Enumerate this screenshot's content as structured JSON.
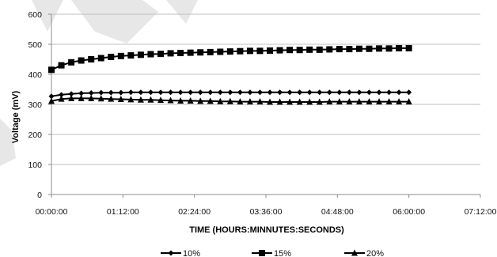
{
  "chart_data": {
    "type": "line",
    "xlabel": "TIME (HOURS:MINNUTES:SECONDS)",
    "ylabel": "Voltage (mV)",
    "x_ticks": [
      "00:00:00",
      "01:12:00",
      "02:24:00",
      "03:36:00",
      "04:48:00",
      "06:00:00",
      "07:12:00"
    ],
    "xlim_minutes": [
      0,
      432
    ],
    "ylim": [
      0,
      600
    ],
    "y_ticks": [
      0,
      100,
      200,
      300,
      400,
      500,
      600
    ],
    "grid": "horizontal",
    "legend_position": "bottom",
    "series": [
      {
        "name": "10%",
        "marker": "diamond",
        "color": "#000000",
        "x_minutes": [
          0,
          10,
          20,
          30,
          40,
          50,
          60,
          70,
          80,
          90,
          100,
          110,
          120,
          130,
          140,
          150,
          160,
          170,
          180,
          190,
          200,
          210,
          220,
          230,
          240,
          250,
          260,
          270,
          280,
          290,
          300,
          310,
          320,
          330,
          340,
          350,
          360
        ],
        "values": [
          327,
          332,
          335,
          337,
          338,
          339,
          339,
          339,
          340,
          340,
          340,
          340,
          340,
          340,
          340,
          340,
          340,
          340,
          340,
          340,
          340,
          340,
          340,
          340,
          340,
          340,
          340,
          340,
          340,
          340,
          340,
          340,
          340,
          340,
          340,
          340,
          340
        ]
      },
      {
        "name": "15%",
        "marker": "square",
        "color": "#000000",
        "x_minutes": [
          0,
          10,
          20,
          30,
          40,
          50,
          60,
          70,
          80,
          90,
          100,
          110,
          120,
          130,
          140,
          150,
          160,
          170,
          180,
          190,
          200,
          210,
          220,
          230,
          240,
          250,
          260,
          270,
          280,
          290,
          300,
          310,
          320,
          330,
          340,
          350,
          360
        ],
        "values": [
          415,
          430,
          440,
          446,
          450,
          454,
          458,
          461,
          463,
          465,
          467,
          468,
          470,
          471,
          472,
          473,
          474,
          475,
          476,
          477,
          478,
          478,
          479,
          480,
          481,
          481,
          482,
          482,
          483,
          484,
          484,
          485,
          485,
          486,
          486,
          487,
          487
        ]
      },
      {
        "name": "20%",
        "marker": "triangle",
        "color": "#000000",
        "x_minutes": [
          0,
          10,
          20,
          30,
          40,
          50,
          60,
          70,
          80,
          90,
          100,
          110,
          120,
          130,
          140,
          150,
          160,
          170,
          180,
          190,
          200,
          210,
          220,
          230,
          240,
          250,
          260,
          270,
          280,
          290,
          300,
          310,
          320,
          330,
          340,
          350,
          360
        ],
        "values": [
          311,
          318,
          320,
          320,
          320,
          319,
          318,
          317,
          316,
          315,
          315,
          314,
          313,
          312,
          312,
          311,
          311,
          310,
          310,
          309,
          309,
          309,
          308,
          308,
          308,
          308,
          308,
          308,
          309,
          309,
          309,
          309,
          309,
          309,
          309,
          309,
          309
        ]
      }
    ]
  }
}
